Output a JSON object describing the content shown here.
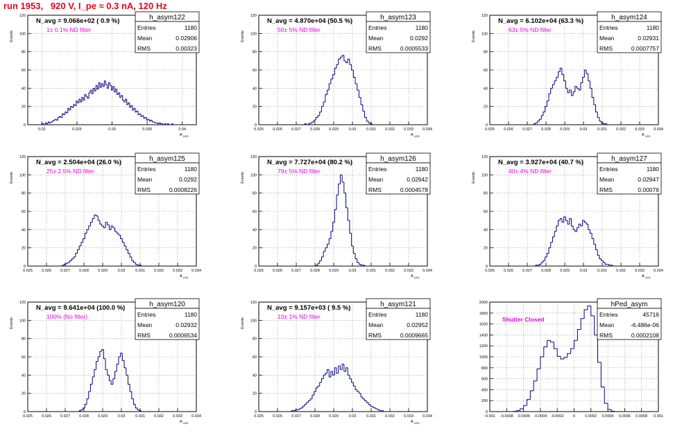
{
  "header": {
    "run_title": "run 1953,   920 V, I_pe ≈ 0.3 nA, 120 Hz"
  },
  "colors": {
    "title": "#e8001c",
    "annotation": "#e600e6",
    "histogram": "#000080",
    "grid": "#777777",
    "text": "#000000"
  },
  "chart_data": [
    {
      "type": "bar",
      "title": "h_asym122",
      "headline": "N_avg = 9.066e+02 ( 0.9 %)",
      "annotation": "1± 0.1% ND filter",
      "stats": {
        "Entries": "1180",
        "Mean": "0.02906",
        "RMS": "0.00323"
      },
      "xlim": [
        0.018,
        0.042
      ],
      "ylim": [
        0,
        120
      ],
      "xticks": [
        "0.02",
        "0.025",
        "0.03",
        "0.035",
        "0.04"
      ],
      "yticks": [
        "0",
        "20",
        "40",
        "60",
        "80",
        "100",
        "120"
      ],
      "ylabel": "Events",
      "xlabel": "A_LED",
      "x": [
        0.02,
        0.0202,
        0.0204,
        0.0206,
        0.0208,
        0.021,
        0.0212,
        0.0214,
        0.0216,
        0.0218,
        0.022,
        0.0222,
        0.0224,
        0.0226,
        0.0228,
        0.023,
        0.0232,
        0.0234,
        0.0236,
        0.0238,
        0.024,
        0.0242,
        0.0244,
        0.0246,
        0.0248,
        0.025,
        0.0252,
        0.0254,
        0.0256,
        0.0258,
        0.026,
        0.0262,
        0.0264,
        0.0266,
        0.0268,
        0.027,
        0.0272,
        0.0274,
        0.0276,
        0.0278,
        0.028,
        0.0282,
        0.0284,
        0.0286,
        0.0288,
        0.029,
        0.0292,
        0.0294,
        0.0296,
        0.0298,
        0.03,
        0.0302,
        0.0304,
        0.0306,
        0.0308,
        0.031,
        0.0312,
        0.0314,
        0.0316,
        0.0318,
        0.032,
        0.0322,
        0.0324,
        0.0326,
        0.0328,
        0.033,
        0.0332,
        0.0334,
        0.0336,
        0.0338,
        0.034,
        0.0342,
        0.0344,
        0.0346,
        0.0348,
        0.035,
        0.0352,
        0.0354,
        0.0356,
        0.0358,
        0.036,
        0.0362,
        0.0364,
        0.0366,
        0.0368,
        0.037,
        0.0372,
        0.0374,
        0.0376,
        0.0378,
        0.038,
        0.0382,
        0.0384,
        0.0386,
        0.0388,
        0.039
      ],
      "values": [
        0,
        1,
        0,
        2,
        1,
        3,
        2,
        3,
        4,
        5,
        6,
        5,
        8,
        9,
        8,
        12,
        11,
        14,
        13,
        18,
        16,
        20,
        19,
        22,
        21,
        26,
        24,
        28,
        25,
        30,
        27,
        33,
        31,
        29,
        35,
        38,
        34,
        40,
        37,
        43,
        39,
        46,
        41,
        45,
        42,
        48,
        44,
        40,
        46,
        43,
        38,
        42,
        36,
        39,
        33,
        35,
        30,
        32,
        27,
        25,
        28,
        22,
        24,
        19,
        21,
        16,
        18,
        14,
        15,
        11,
        12,
        9,
        10,
        7,
        8,
        5,
        6,
        4,
        5,
        3,
        3,
        2,
        2,
        1,
        2,
        1,
        1,
        0,
        1,
        0,
        1,
        0,
        0,
        1,
        0,
        0
      ],
      "bin_width": 0.0002
    },
    {
      "type": "bar",
      "title": "h_asym123",
      "headline": "N_avg = 4.870e+04 (50.5 %)",
      "annotation": "50± 5% ND filter",
      "stats": {
        "Entries": "1180",
        "Mean": "0.0292",
        "RMS": "0.0005533"
      },
      "xlim": [
        0.025,
        0.034
      ],
      "ylim": [
        0,
        120
      ],
      "xticks": [
        "0.025",
        "0.026",
        "0.027",
        "0.028",
        "0.029",
        "0.03",
        "0.031",
        "0.032",
        "0.033",
        "0.034"
      ],
      "yticks": [
        "0",
        "20",
        "40",
        "60",
        "80",
        "100",
        "120"
      ],
      "ylabel": "Events",
      "xlabel": "A_LED",
      "x": [
        0.0275,
        0.0276,
        0.0277,
        0.0278,
        0.0279,
        0.028,
        0.0281,
        0.0282,
        0.0283,
        0.0284,
        0.0285,
        0.0286,
        0.0287,
        0.0288,
        0.0289,
        0.029,
        0.0291,
        0.0292,
        0.0293,
        0.0294,
        0.0295,
        0.0296,
        0.0297,
        0.0298,
        0.0299,
        0.03,
        0.0301,
        0.0302,
        0.0303,
        0.0304,
        0.0305,
        0.0306,
        0.0307,
        0.0308,
        0.0309,
        0.031
      ],
      "values": [
        1,
        0,
        1,
        2,
        3,
        5,
        8,
        10,
        14,
        20,
        25,
        33,
        38,
        45,
        50,
        55,
        62,
        66,
        72,
        74,
        76,
        70,
        68,
        72,
        66,
        60,
        52,
        45,
        38,
        30,
        22,
        15,
        8,
        4,
        2,
        1
      ],
      "bin_width": 0.0001
    },
    {
      "type": "bar",
      "title": "h_asym124",
      "headline": "N_avg = 6.102e+04 (63.3 %)",
      "annotation": "63± 5% ND filter",
      "stats": {
        "Entries": "1180",
        "Mean": "0.02931",
        "RMS": "0.0007757"
      },
      "xlim": [
        0.025,
        0.034
      ],
      "ylim": [
        0,
        120
      ],
      "xticks": [
        "0.025",
        "0.026",
        "0.027",
        "0.028",
        "0.029",
        "0.03",
        "0.031",
        "0.032",
        "0.033",
        "0.034"
      ],
      "yticks": [
        "0",
        "20",
        "40",
        "60",
        "80",
        "100",
        "120"
      ],
      "ylabel": "Events",
      "xlabel": "A_LED",
      "x": [
        0.0274,
        0.0275,
        0.0276,
        0.0277,
        0.0278,
        0.0279,
        0.028,
        0.0281,
        0.0282,
        0.0283,
        0.0284,
        0.0285,
        0.0286,
        0.0287,
        0.0288,
        0.0289,
        0.029,
        0.0291,
        0.0292,
        0.0293,
        0.0294,
        0.0295,
        0.0296,
        0.0297,
        0.0298,
        0.0299,
        0.03,
        0.0301,
        0.0302,
        0.0303,
        0.0304,
        0.0305,
        0.0306,
        0.0307,
        0.0308,
        0.0309,
        0.031,
        0.0311,
        0.0312
      ],
      "values": [
        1,
        2,
        4,
        6,
        10,
        14,
        20,
        26,
        34,
        40,
        44,
        48,
        52,
        58,
        62,
        55,
        48,
        40,
        35,
        38,
        32,
        36,
        42,
        40,
        38,
        46,
        52,
        60,
        56,
        48,
        40,
        30,
        22,
        14,
        8,
        4,
        2,
        1,
        1
      ],
      "bin_width": 0.0001
    },
    {
      "type": "bar",
      "title": "h_asym125",
      "headline": "N_avg = 2.504e+04 (26.0 %)",
      "annotation": "25± 2.5% ND filter",
      "stats": {
        "Entries": "1180",
        "Mean": "0.0292",
        "RMS": "0.0008226"
      },
      "xlim": [
        0.025,
        0.034
      ],
      "ylim": [
        0,
        120
      ],
      "xticks": [
        "0.025",
        "0.026",
        "0.027",
        "0.028",
        "0.029",
        "0.03",
        "0.031",
        "0.032",
        "0.033",
        "0.034"
      ],
      "yticks": [
        "0",
        "20",
        "40",
        "60",
        "80",
        "100",
        "120"
      ],
      "ylabel": "Events",
      "xlabel": "A_LED",
      "x": [
        0.0269,
        0.027,
        0.0271,
        0.0272,
        0.0273,
        0.0274,
        0.0275,
        0.0276,
        0.0277,
        0.0278,
        0.0279,
        0.028,
        0.0281,
        0.0282,
        0.0283,
        0.0284,
        0.0285,
        0.0286,
        0.0287,
        0.0288,
        0.0289,
        0.029,
        0.0291,
        0.0292,
        0.0293,
        0.0294,
        0.0295,
        0.0296,
        0.0297,
        0.0298,
        0.0299,
        0.03,
        0.0301,
        0.0302,
        0.0303,
        0.0304,
        0.0305,
        0.0306,
        0.0307,
        0.0308,
        0.0309,
        0.031
      ],
      "values": [
        1,
        2,
        3,
        4,
        6,
        8,
        10,
        14,
        18,
        22,
        26,
        30,
        36,
        40,
        44,
        48,
        52,
        56,
        55,
        50,
        46,
        44,
        42,
        48,
        45,
        40,
        44,
        42,
        38,
        36,
        34,
        30,
        26,
        22,
        18,
        14,
        10,
        6,
        4,
        2,
        1,
        1
      ],
      "bin_width": 0.0001
    },
    {
      "type": "bar",
      "title": "h_asym126",
      "headline": "N_avg = 7.727e+04 (80.2 %)",
      "annotation": "79± 5% ND filter",
      "stats": {
        "Entries": "1180",
        "Mean": "0.02942",
        "RMS": "0.0004578"
      },
      "xlim": [
        0.025,
        0.034
      ],
      "ylim": [
        0,
        120
      ],
      "xticks": [
        "0.025",
        "0.026",
        "0.027",
        "0.028",
        "0.029",
        "0.03",
        "0.031",
        "0.032",
        "0.033",
        "0.034"
      ],
      "yticks": [
        "0",
        "20",
        "40",
        "60",
        "80",
        "100",
        "120"
      ],
      "ylabel": "Events",
      "xlabel": "A_LED",
      "x": [
        0.0281,
        0.0282,
        0.0283,
        0.0284,
        0.0285,
        0.0286,
        0.0287,
        0.0288,
        0.0289,
        0.029,
        0.0291,
        0.0292,
        0.0293,
        0.0294,
        0.0295,
        0.0296,
        0.0297,
        0.0298,
        0.0299,
        0.03,
        0.0301,
        0.0302,
        0.0303,
        0.0304,
        0.0305,
        0.0306
      ],
      "values": [
        1,
        3,
        6,
        10,
        16,
        20,
        24,
        30,
        38,
        48,
        62,
        78,
        90,
        100,
        92,
        80,
        64,
        50,
        36,
        22,
        14,
        8,
        4,
        2,
        1,
        1
      ],
      "bin_width": 0.0001
    },
    {
      "type": "bar",
      "title": "h_asym127",
      "headline": "N_avg = 3.927e+04 (40.7 %)",
      "annotation": "40± 4% ND filter",
      "stats": {
        "Entries": "1180",
        "Mean": "0.02947",
        "RMS": "0.00076"
      },
      "xlim": [
        0.025,
        0.034
      ],
      "ylim": [
        0,
        120
      ],
      "xticks": [
        "0.025",
        "0.026",
        "0.027",
        "0.028",
        "0.029",
        "0.03",
        "0.031",
        "0.032",
        "0.033",
        "0.034"
      ],
      "yticks": [
        "0",
        "20",
        "40",
        "60",
        "80",
        "100",
        "120"
      ],
      "ylabel": "Events",
      "xlabel": "A_LED",
      "x": [
        0.0275,
        0.0276,
        0.0277,
        0.0278,
        0.0279,
        0.028,
        0.0281,
        0.0282,
        0.0283,
        0.0284,
        0.0285,
        0.0286,
        0.0287,
        0.0288,
        0.0289,
        0.029,
        0.0291,
        0.0292,
        0.0293,
        0.0294,
        0.0295,
        0.0296,
        0.0297,
        0.0298,
        0.0299,
        0.03,
        0.0301,
        0.0302,
        0.0303,
        0.0304,
        0.0305,
        0.0306,
        0.0307,
        0.0308,
        0.0309,
        0.031,
        0.0311,
        0.0312,
        0.0313,
        0.0314,
        0.0315
      ],
      "values": [
        1,
        1,
        2,
        4,
        6,
        10,
        14,
        20,
        26,
        32,
        38,
        44,
        50,
        52,
        48,
        54,
        50,
        46,
        52,
        44,
        40,
        38,
        42,
        46,
        44,
        50,
        48,
        46,
        40,
        36,
        30,
        24,
        18,
        12,
        8,
        6,
        4,
        2,
        2,
        1,
        1
      ],
      "bin_width": 0.0001
    },
    {
      "type": "bar",
      "title": "h_asym120",
      "headline": "N_avg = 9.641e+04 (100.0 %)",
      "annotation": "100% (No filter)",
      "stats": {
        "Entries": "1180",
        "Mean": "0.02932",
        "RMS": "0.0006534"
      },
      "xlim": [
        0.025,
        0.034
      ],
      "ylim": [
        0,
        120
      ],
      "xticks": [
        "0.025",
        "0.026",
        "0.027",
        "0.028",
        "0.029",
        "0.03",
        "0.031",
        "0.032",
        "0.033",
        "0.034"
      ],
      "yticks": [
        "0",
        "20",
        "40",
        "60",
        "80",
        "100",
        "120"
      ],
      "ylabel": "Events",
      "xlabel": "A_LED",
      "x": [
        0.0278,
        0.0279,
        0.028,
        0.0281,
        0.0282,
        0.0283,
        0.0284,
        0.0285,
        0.0286,
        0.0287,
        0.0288,
        0.0289,
        0.029,
        0.0291,
        0.0292,
        0.0293,
        0.0294,
        0.0295,
        0.0296,
        0.0297,
        0.0298,
        0.0299,
        0.03,
        0.0301,
        0.0302,
        0.0303,
        0.0304,
        0.0305,
        0.0306,
        0.0307,
        0.0308,
        0.0309,
        0.031
      ],
      "values": [
        1,
        2,
        4,
        8,
        14,
        22,
        30,
        38,
        46,
        55,
        60,
        66,
        68,
        58,
        46,
        40,
        34,
        30,
        36,
        44,
        52,
        60,
        64,
        56,
        48,
        40,
        30,
        22,
        14,
        8,
        4,
        2,
        1
      ],
      "bin_width": 0.0001
    },
    {
      "type": "bar",
      "title": "h_asym121",
      "headline": "N_avg = 9.157e+03 ( 9.5 %)",
      "annotation": "10± 1% ND filter",
      "stats": {
        "Entries": "1180",
        "Mean": "0.02952",
        "RMS": "0.0009665"
      },
      "xlim": [
        0.025,
        0.034
      ],
      "ylim": [
        0,
        120
      ],
      "xticks": [
        "0.025",
        "0.026",
        "0.027",
        "0.028",
        "0.029",
        "0.03",
        "0.031",
        "0.032",
        "0.033",
        "0.034"
      ],
      "yticks": [
        "0",
        "20",
        "40",
        "60",
        "80",
        "100",
        "120"
      ],
      "ylabel": "Events",
      "xlabel": "A_LED",
      "x": [
        0.0268,
        0.0269,
        0.027,
        0.0271,
        0.0272,
        0.0273,
        0.0274,
        0.0275,
        0.0276,
        0.0277,
        0.0278,
        0.0279,
        0.028,
        0.0281,
        0.0282,
        0.0283,
        0.0284,
        0.0285,
        0.0286,
        0.0287,
        0.0288,
        0.0289,
        0.029,
        0.0291,
        0.0292,
        0.0293,
        0.0294,
        0.0295,
        0.0296,
        0.0297,
        0.0298,
        0.0299,
        0.03,
        0.0301,
        0.0302,
        0.0303,
        0.0304,
        0.0305,
        0.0306,
        0.0307,
        0.0308,
        0.0309,
        0.031,
        0.0311,
        0.0312,
        0.0313,
        0.0314,
        0.0315,
        0.0316
      ],
      "values": [
        1,
        1,
        2,
        2,
        3,
        4,
        6,
        8,
        10,
        12,
        14,
        18,
        22,
        26,
        28,
        32,
        36,
        40,
        42,
        46,
        38,
        44,
        40,
        48,
        42,
        50,
        46,
        52,
        44,
        48,
        40,
        36,
        32,
        28,
        24,
        22,
        20,
        16,
        14,
        12,
        10,
        8,
        6,
        5,
        4,
        3,
        2,
        1,
        1
      ],
      "bin_width": 0.0001
    },
    {
      "type": "bar",
      "title": "hPed_asym",
      "headline": "",
      "annotation": "Shutter Closed",
      "stats": {
        "Entries": "45716",
        "Mean": "-6.486e-06",
        "RMS": "0.0002108"
      },
      "xlim": [
        -0.001,
        0.001
      ],
      "ylim": [
        0,
        2000
      ],
      "xticks": [
        "-0.001",
        "-0.0008",
        "-0.0006",
        "-0.0004",
        "-0.0002",
        "0",
        "0.0002",
        "0.0004",
        "0.0006",
        "0.0008",
        "0.001"
      ],
      "yticks": [
        "0",
        "200",
        "400",
        "600",
        "800",
        "1000",
        "1200",
        "1400",
        "1600",
        "1800",
        "2000"
      ],
      "ylabel": "",
      "xlabel": "",
      "x": [
        -0.0007,
        -0.00066,
        -0.00062,
        -0.00058,
        -0.00054,
        -0.0005,
        -0.00046,
        -0.00042,
        -0.00038,
        -0.00034,
        -0.0003,
        -0.00026,
        -0.00022,
        -0.00018,
        -0.00014,
        -0.0001,
        -6e-05,
        -2e-05,
        2e-05,
        6e-05,
        0.0001,
        0.00014,
        0.00018,
        0.00022,
        0.00026,
        0.0003,
        0.00034,
        0.00038,
        0.00042,
        0.00046
      ],
      "values": [
        5,
        20,
        50,
        110,
        220,
        380,
        560,
        780,
        1000,
        1180,
        1300,
        1270,
        1150,
        1010,
        960,
        990,
        1060,
        1150,
        1300,
        1500,
        1700,
        1860,
        1930,
        1750,
        1400,
        900,
        450,
        150,
        40,
        8
      ],
      "bin_width": 4e-05
    }
  ]
}
